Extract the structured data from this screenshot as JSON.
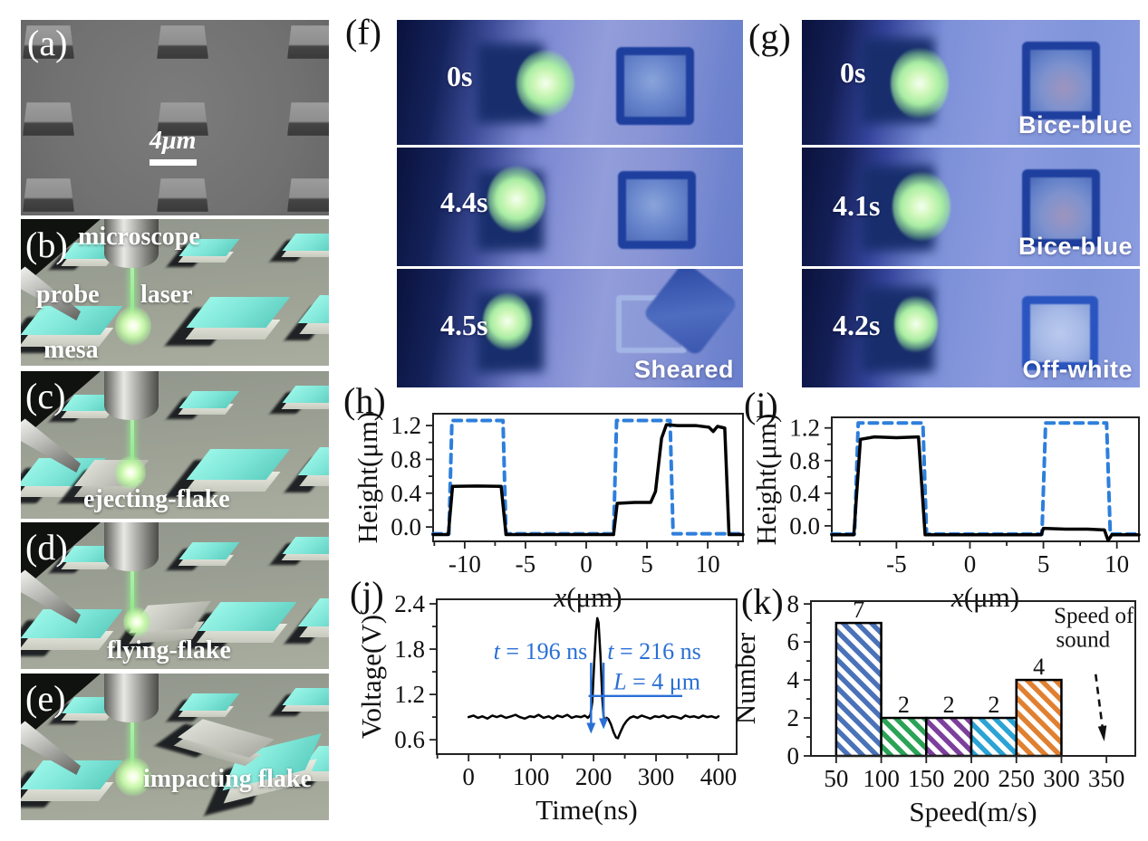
{
  "panels": {
    "a": {
      "label": "(a)",
      "scalebar_text": "4μm"
    },
    "b": {
      "label": "(b)",
      "labels": {
        "microscope": "microscope",
        "probe": "probe",
        "laser": "laser",
        "mesa": "mesa"
      }
    },
    "c": {
      "label": "(c)",
      "caption": "ejecting-flake"
    },
    "d": {
      "label": "(d)",
      "caption": "flying-flake"
    },
    "e": {
      "label": "(e)",
      "caption": "impacting flake"
    },
    "f": {
      "label": "(f)",
      "frames": [
        {
          "time": "0s",
          "tag": ""
        },
        {
          "time": "4.4s",
          "tag": ""
        },
        {
          "time": "4.5s",
          "tag": "Sheared"
        }
      ]
    },
    "g": {
      "label": "(g)",
      "frames": [
        {
          "time": "0s",
          "tag": "Bice-blue"
        },
        {
          "time": "4.1s",
          "tag": "Bice-blue"
        },
        {
          "time": "4.2s",
          "tag": "Off-white"
        }
      ]
    },
    "h": {
      "label": "(h)"
    },
    "i": {
      "label": "(i)"
    },
    "j": {
      "label": "(j)"
    },
    "k": {
      "label": "(k)"
    }
  },
  "chart_data": [
    {
      "id": "h",
      "type": "line",
      "title": "",
      "xlabel": "x(μm)",
      "xlabel_italic_first": true,
      "ylabel": "Height(μm)",
      "xlim": [
        -12.6,
        12.9
      ],
      "ylim": [
        -0.17,
        1.34
      ],
      "xticks": [
        -10,
        -5,
        0,
        5,
        10
      ],
      "yticks": [
        0.0,
        0.4,
        0.8,
        1.2
      ],
      "ytick_labels": [
        "0.0",
        "0.4",
        "0.8",
        "1.2"
      ],
      "minor_x": 2.5,
      "minor_y": 0.2,
      "grid": false,
      "legend": null,
      "series": [
        {
          "name": "original-mesa-dashed",
          "color": "#2e7fdc",
          "dash": "9 7",
          "width": 4,
          "points": [
            [
              -12.6,
              -0.08
            ],
            [
              -11.3,
              -0.08
            ],
            [
              -11.05,
              1.26
            ],
            [
              -6.85,
              1.26
            ],
            [
              -6.6,
              -0.08
            ],
            [
              2.25,
              -0.08
            ],
            [
              2.5,
              1.26
            ],
            [
              6.9,
              1.26
            ],
            [
              7.15,
              -0.08
            ],
            [
              12.9,
              -0.08
            ]
          ]
        },
        {
          "name": "after-transfer-solid",
          "color": "#000000",
          "dash": null,
          "width": 3.5,
          "points": [
            [
              -12.6,
              -0.09
            ],
            [
              -11.35,
              -0.09
            ],
            [
              -11.0,
              0.48
            ],
            [
              -9.0,
              0.485
            ],
            [
              -7.0,
              0.48
            ],
            [
              -6.6,
              -0.09
            ],
            [
              2.25,
              -0.09
            ],
            [
              2.55,
              0.28
            ],
            [
              4.0,
              0.29
            ],
            [
              5.3,
              0.29
            ],
            [
              5.7,
              0.42
            ],
            [
              6.2,
              1.05
            ],
            [
              6.6,
              1.21
            ],
            [
              7.5,
              1.2
            ],
            [
              9.0,
              1.2
            ],
            [
              10.1,
              1.18
            ],
            [
              10.45,
              1.13
            ],
            [
              10.8,
              1.19
            ],
            [
              11.4,
              1.17
            ],
            [
              11.75,
              -0.09
            ],
            [
              12.9,
              -0.09
            ]
          ]
        }
      ]
    },
    {
      "id": "i",
      "type": "line",
      "title": "",
      "xlabel": "x(μm)",
      "xlabel_italic_first": true,
      "ylabel": "Height(μm)",
      "xlim": [
        -9.4,
        11.5
      ],
      "ylim": [
        -0.19,
        1.33
      ],
      "xticks": [
        -5,
        0,
        5,
        10
      ],
      "yticks": [
        0.0,
        0.4,
        0.8,
        1.2
      ],
      "ytick_labels": [
        "0.0",
        "0.4",
        "0.8",
        "1.2"
      ],
      "minor_x": 2.5,
      "minor_y": 0.2,
      "grid": false,
      "legend": null,
      "series": [
        {
          "name": "original-mesa-dashed",
          "color": "#2e7fdc",
          "dash": "9 7",
          "width": 4,
          "points": [
            [
              -9.4,
              -0.1
            ],
            [
              -7.85,
              -0.1
            ],
            [
              -7.6,
              1.26
            ],
            [
              -3.2,
              1.26
            ],
            [
              -2.95,
              -0.1
            ],
            [
              4.9,
              -0.1
            ],
            [
              5.15,
              1.26
            ],
            [
              9.3,
              1.26
            ],
            [
              9.55,
              -0.1
            ],
            [
              11.5,
              -0.1
            ]
          ]
        },
        {
          "name": "after-transfer-solid",
          "color": "#000000",
          "dash": null,
          "width": 3.5,
          "points": [
            [
              -9.4,
              -0.11
            ],
            [
              -7.9,
              -0.11
            ],
            [
              -7.45,
              1.06
            ],
            [
              -6.5,
              1.09
            ],
            [
              -5.0,
              1.08
            ],
            [
              -3.5,
              1.09
            ],
            [
              -3.05,
              -0.11
            ],
            [
              4.85,
              -0.11
            ],
            [
              5.0,
              -0.03
            ],
            [
              6.5,
              -0.04
            ],
            [
              8.0,
              -0.04
            ],
            [
              9.15,
              -0.05
            ],
            [
              9.4,
              -0.18
            ],
            [
              9.65,
              -0.11
            ],
            [
              11.5,
              -0.11
            ]
          ]
        }
      ]
    },
    {
      "id": "j",
      "type": "line",
      "title": "",
      "xlabel": "Time(ns)",
      "xlabel_italic_first": false,
      "ylabel": "Voltage(V)",
      "xlim": [
        -51,
        429
      ],
      "ylim": [
        0.41,
        2.46
      ],
      "xticks": [
        0,
        100,
        200,
        300,
        400
      ],
      "yticks": [
        0.6,
        1.2,
        1.8,
        2.4
      ],
      "ytick_labels": [
        "0.6",
        "1.2",
        "1.8",
        "2.4"
      ],
      "minor_x": 50,
      "minor_y": 0.3,
      "grid": false,
      "legend": null,
      "series": [
        {
          "name": "photodetector-signal",
          "color": "#000000",
          "dash": null,
          "width": 2.5,
          "points": [
            [
              0,
              0.9
            ],
            [
              8,
              0.92
            ],
            [
              15,
              0.89
            ],
            [
              22,
              0.91
            ],
            [
              30,
              0.88
            ],
            [
              38,
              0.92
            ],
            [
              45,
              0.9
            ],
            [
              52,
              0.92
            ],
            [
              60,
              0.89
            ],
            [
              68,
              0.91
            ],
            [
              75,
              0.93
            ],
            [
              82,
              0.9
            ],
            [
              90,
              0.88
            ],
            [
              98,
              0.91
            ],
            [
              105,
              0.9
            ],
            [
              112,
              0.93
            ],
            [
              120,
              0.89
            ],
            [
              128,
              0.91
            ],
            [
              135,
              0.88
            ],
            [
              142,
              0.92
            ],
            [
              150,
              0.9
            ],
            [
              158,
              0.93
            ],
            [
              165,
              0.89
            ],
            [
              172,
              0.91
            ],
            [
              180,
              0.9
            ],
            [
              186,
              0.92
            ],
            [
              191,
              0.89
            ],
            [
              195,
              0.93
            ],
            [
              198,
              1.1
            ],
            [
              201,
              1.62
            ],
            [
              204,
              2.05
            ],
            [
              206,
              2.21
            ],
            [
              208,
              2.15
            ],
            [
              211,
              1.72
            ],
            [
              214,
              1.15
            ],
            [
              216,
              0.92
            ],
            [
              218,
              0.84
            ],
            [
              221,
              0.89
            ],
            [
              224,
              0.87
            ],
            [
              228,
              0.8
            ],
            [
              232,
              0.7
            ],
            [
              236,
              0.63
            ],
            [
              239,
              0.62
            ],
            [
              243,
              0.7
            ],
            [
              248,
              0.79
            ],
            [
              253,
              0.85
            ],
            [
              258,
              0.89
            ],
            [
              264,
              0.91
            ],
            [
              270,
              0.89
            ],
            [
              277,
              0.92
            ],
            [
              284,
              0.9
            ],
            [
              291,
              0.88
            ],
            [
              298,
              0.91
            ],
            [
              305,
              0.9
            ],
            [
              312,
              0.92
            ],
            [
              319,
              0.89
            ],
            [
              326,
              0.91
            ],
            [
              333,
              0.9
            ],
            [
              340,
              0.88
            ],
            [
              347,
              0.92
            ],
            [
              354,
              0.9
            ],
            [
              361,
              0.91
            ],
            [
              368,
              0.89
            ],
            [
              375,
              0.92
            ],
            [
              382,
              0.9
            ],
            [
              389,
              0.91
            ],
            [
              396,
              0.89
            ],
            [
              400,
              0.91
            ]
          ]
        }
      ],
      "annotations": {
        "color": "#2a6fd6",
        "vlines": [
          {
            "x": 196,
            "y1": 1.62,
            "y2": 0.8
          },
          {
            "x": 216,
            "y1": 1.62,
            "y2": 0.86
          }
        ],
        "hline": {
          "y": 1.18,
          "x1": 192,
          "x2": 342
        },
        "texts": [
          {
            "text": "t = 196 ns",
            "x": 190,
            "y": 1.67,
            "anchor": "end",
            "italic_first": true
          },
          {
            "text": "t = 216 ns",
            "x": 222,
            "y": 1.67,
            "anchor": "start",
            "italic_first": true
          },
          {
            "text": "L = 4 μm",
            "x": 232,
            "y": 1.27,
            "anchor": "start",
            "italic_first": true
          }
        ]
      }
    },
    {
      "id": "k",
      "type": "bar",
      "title": "",
      "xlabel": "Speed(m/s)",
      "xlabel_italic_first": false,
      "ylabel": "Number",
      "xlim": [
        22,
        382
      ],
      "ylim": [
        0,
        8.15
      ],
      "xticks": [
        50,
        100,
        150,
        200,
        250,
        300,
        350
      ],
      "yticks": [
        0,
        2,
        4,
        6,
        8
      ],
      "ytick_labels": [
        "0",
        "2",
        "4",
        "6",
        "8"
      ],
      "minor_y": 1,
      "grid": false,
      "legend": null,
      "bin_edges": [
        50,
        100,
        150,
        200,
        250,
        300
      ],
      "counts": [
        7,
        2,
        2,
        2,
        4
      ],
      "bar_colors": [
        "#4a72b8",
        "#2aa356",
        "#7c3f9c",
        "#2ba3d4",
        "#e08030"
      ],
      "annotation": {
        "lines": [
          "Speed of",
          "sound"
        ],
        "line_pos": [
          [
            336,
            7.0
          ],
          [
            324,
            5.75
          ]
        ],
        "arrow_from": [
          338,
          4.3
        ],
        "arrow_to": [
          347,
          0.95
        ]
      }
    }
  ]
}
